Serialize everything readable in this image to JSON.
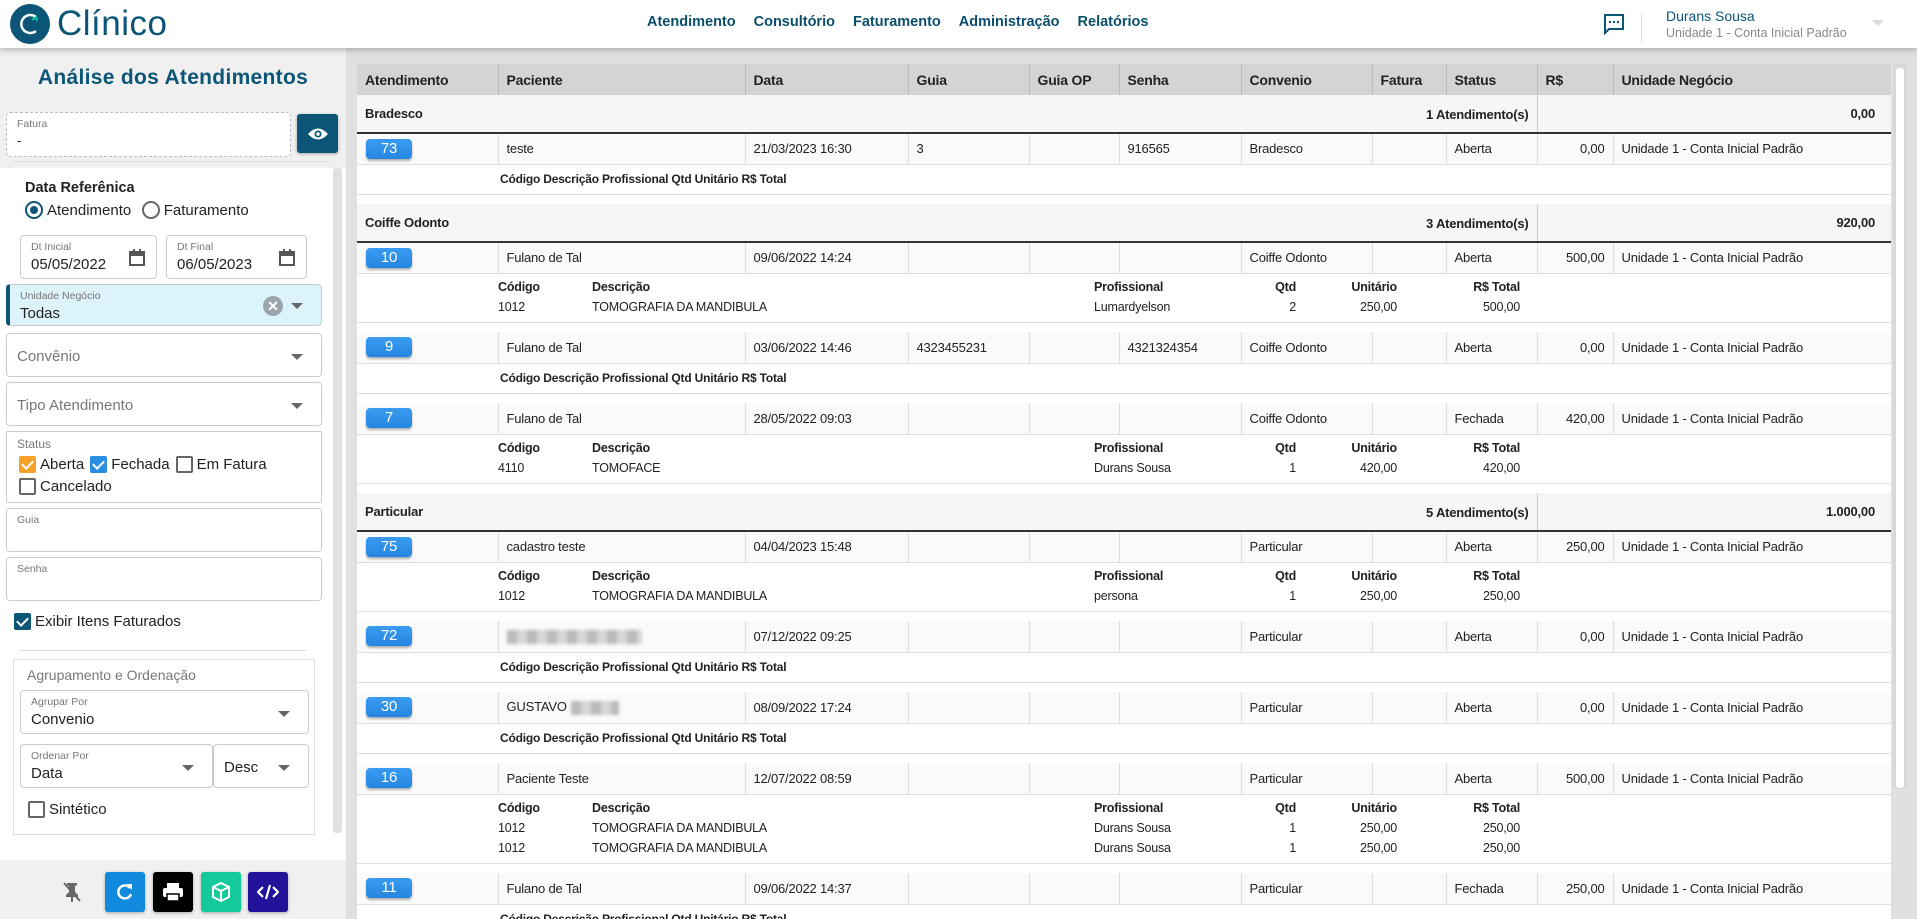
{
  "header": {
    "brand": "Clínico",
    "nav": [
      "Atendimento",
      "Consultório",
      "Faturamento",
      "Administração",
      "Relatórios"
    ],
    "user_name": "Durans Sousa",
    "user_unit": "Unidade 1 - Conta Inicial Padrão"
  },
  "sidebar": {
    "title": "Análise dos Atendimentos",
    "fatura": {
      "label": "Fatura",
      "value": "-"
    },
    "data_ref": {
      "label": "Data Referênica",
      "options": [
        "Atendimento",
        "Faturamento"
      ],
      "selected": "Atendimento"
    },
    "dt_inicial": {
      "label": "Dt Inicial",
      "value": "05/05/2022"
    },
    "dt_final": {
      "label": "Dt Final",
      "value": "06/05/2023"
    },
    "unidade": {
      "label": "Unidade Negócio",
      "value": "Todas"
    },
    "convenio": {
      "placeholder": "Convênio"
    },
    "tipo": {
      "placeholder": "Tipo Atendimento"
    },
    "status": {
      "label": "Status",
      "options": [
        {
          "label": "Aberta",
          "checked": true,
          "color": "#f7a12a"
        },
        {
          "label": "Fechada",
          "checked": true,
          "color": "#2a8fe0"
        },
        {
          "label": "Em Fatura",
          "checked": false
        },
        {
          "label": "Cancelado",
          "checked": false
        }
      ]
    },
    "guia": {
      "label": "Guia",
      "value": ""
    },
    "senha": {
      "label": "Senha",
      "value": ""
    },
    "exibir": {
      "label": "Exibir Itens Faturados",
      "checked": true
    },
    "agrup": {
      "title": "Agrupamento e Ordenação",
      "agrupar_label": "Agrupar Por",
      "agrupar_value": "Convenio",
      "ordenar_label": "Ordenar Por",
      "ordenar_value": "Data",
      "ordem": "Desc",
      "sintetico": "Sintético"
    },
    "buttons": [
      {
        "icon": "pin-off-icon",
        "color": "transparent"
      },
      {
        "icon": "refresh-icon",
        "color": "#1189dc"
      },
      {
        "icon": "print-icon",
        "color": "#000000"
      },
      {
        "icon": "box-icon",
        "color": "#14c99a"
      },
      {
        "icon": "code-icon",
        "color": "#22139a"
      }
    ]
  },
  "table": {
    "columns": [
      "Atendimento",
      "Paciente",
      "Data",
      "Guia",
      "Guia OP",
      "Senha",
      "Convenio",
      "Fatura",
      "Status",
      "R$",
      "Unidade Negócio"
    ],
    "item_columns": [
      "Código",
      "Descrição",
      "Profissional",
      "Qtd",
      "Unitário",
      "R$ Total"
    ],
    "groups": [
      {
        "name": "Bradesco",
        "count": "1 Atendimento(s)",
        "total": "0,00",
        "rows": [
          {
            "id": "73",
            "paciente": "teste",
            "data": "21/03/2023 16:30",
            "guia": "3",
            "guia_op": "",
            "senha": "916565",
            "convenio": "Bradesco",
            "fatura": "",
            "status": "Aberta",
            "valor": "0,00",
            "unidade": "Unidade 1 - Conta Inicial Padrão",
            "items": []
          }
        ]
      },
      {
        "name": "Coiffe Odonto",
        "count": "3 Atendimento(s)",
        "total": "920,00",
        "rows": [
          {
            "id": "10",
            "paciente": "Fulano de Tal",
            "data": "09/06/2022 14:24",
            "guia": "",
            "guia_op": "",
            "senha": "",
            "convenio": "Coiffe Odonto",
            "fatura": "",
            "status": "Aberta",
            "valor": "500,00",
            "unidade": "Unidade 1 - Conta Inicial Padrão",
            "items": [
              [
                "1012",
                "TOMOGRAFIA DA MANDIBULA",
                "Lumardyelson",
                "2",
                "250,00",
                "500,00"
              ]
            ]
          },
          {
            "id": "9",
            "paciente": "Fulano de Tal",
            "data": "03/06/2022 14:46",
            "guia": "4323455231",
            "guia_op": "",
            "senha": "4321324354",
            "convenio": "Coiffe Odonto",
            "fatura": "",
            "status": "Aberta",
            "valor": "0,00",
            "unidade": "Unidade 1 - Conta Inicial Padrão",
            "items": []
          },
          {
            "id": "7",
            "paciente": "Fulano de Tal",
            "data": "28/05/2022 09:03",
            "guia": "",
            "guia_op": "",
            "senha": "",
            "convenio": "Coiffe Odonto",
            "fatura": "",
            "status": "Fechada",
            "valor": "420,00",
            "unidade": "Unidade 1 - Conta Inicial Padrão",
            "items": [
              [
                "4110",
                "TOMOFACE",
                "Durans Sousa",
                "1",
                "420,00",
                "420,00"
              ]
            ]
          }
        ]
      },
      {
        "name": "Particular",
        "count": "5 Atendimento(s)",
        "total": "1.000,00",
        "rows": [
          {
            "id": "75",
            "paciente": "cadastro teste",
            "data": "04/04/2023 15:48",
            "guia": "",
            "guia_op": "",
            "senha": "",
            "convenio": "Particular",
            "fatura": "",
            "status": "Aberta",
            "valor": "250,00",
            "unidade": "Unidade 1 - Conta Inicial Padrão",
            "items": [
              [
                "1012",
                "TOMOGRAFIA DA MANDIBULA",
                "persona",
                "1",
                "250,00",
                "250,00"
              ]
            ]
          },
          {
            "id": "72",
            "paciente": "",
            "paciente_blurred": true,
            "data": "07/12/2022 09:25",
            "guia": "",
            "guia_op": "",
            "senha": "",
            "convenio": "Particular",
            "fatura": "",
            "status": "Aberta",
            "valor": "0,00",
            "unidade": "Unidade 1 - Conta Inicial Padrão",
            "items": []
          },
          {
            "id": "30",
            "paciente": "GUSTAVO",
            "paciente_blurred": true,
            "data": "08/09/2022 17:24",
            "guia": "",
            "guia_op": "",
            "senha": "",
            "convenio": "Particular",
            "fatura": "",
            "status": "Aberta",
            "valor": "0,00",
            "unidade": "Unidade 1 - Conta Inicial Padrão",
            "items": []
          },
          {
            "id": "16",
            "paciente": "Paciente Teste",
            "data": "12/07/2022 08:59",
            "guia": "",
            "guia_op": "",
            "senha": "",
            "convenio": "Particular",
            "fatura": "",
            "status": "Aberta",
            "valor": "500,00",
            "unidade": "Unidade 1 - Conta Inicial Padrão",
            "items": [
              [
                "1012",
                "TOMOGRAFIA DA MANDIBULA",
                "Durans Sousa",
                "1",
                "250,00",
                "250,00"
              ],
              [
                "1012",
                "TOMOGRAFIA DA MANDIBULA",
                "Durans Sousa",
                "1",
                "250,00",
                "250,00"
              ]
            ]
          },
          {
            "id": "11",
            "paciente": "Fulano de Tal",
            "data": "09/06/2022 14:37",
            "guia": "",
            "guia_op": "",
            "senha": "",
            "convenio": "Particular",
            "fatura": "",
            "status": "Fechada",
            "valor": "250,00",
            "unidade": "Unidade 1 - Conta Inicial Padrão",
            "items": []
          }
        ]
      }
    ]
  }
}
